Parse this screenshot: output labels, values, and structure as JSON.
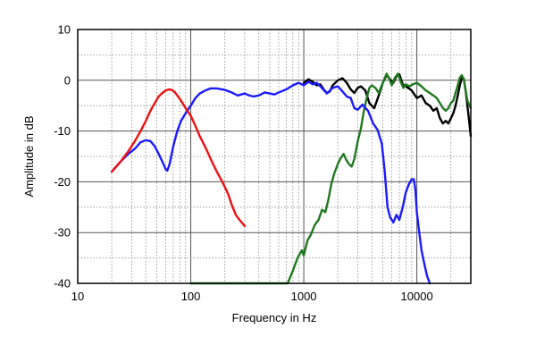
{
  "chart_data": {
    "type": "line",
    "title": "",
    "xlabel": "Frequency in Hz",
    "ylabel": "Amplitude in dB",
    "x_scale": "log",
    "xlim": [
      10,
      30000
    ],
    "ylim": [
      -40,
      10
    ],
    "x_ticks": [
      10,
      100,
      1000,
      10000
    ],
    "x_tick_labels": [
      "10",
      "100",
      "1000",
      "10000"
    ],
    "y_ticks": [
      -40,
      -30,
      -20,
      -10,
      0,
      10
    ],
    "y_tick_labels": [
      "-40",
      "-30",
      "-20",
      "-10",
      "0",
      "10"
    ],
    "grid": true,
    "legend": "none",
    "series": [
      {
        "color": "#000000",
        "points": [
          [
            1000,
            -0.5
          ],
          [
            1100,
            0.2
          ],
          [
            1200,
            -0.3
          ],
          [
            1300,
            -1.0
          ],
          [
            1400,
            -0.8
          ],
          [
            1500,
            -1.8
          ],
          [
            1600,
            -2.5
          ],
          [
            1700,
            -2.2
          ],
          [
            1800,
            -1.0
          ],
          [
            2000,
            0.0
          ],
          [
            2200,
            0.4
          ],
          [
            2400,
            -0.5
          ],
          [
            2600,
            -1.8
          ],
          [
            2800,
            -2.5
          ],
          [
            3000,
            -1.5
          ],
          [
            3200,
            -1.2
          ],
          [
            3500,
            -2.0
          ],
          [
            3800,
            -4.5
          ],
          [
            4200,
            -5.5
          ],
          [
            4600,
            -3.0
          ],
          [
            5000,
            -0.5
          ],
          [
            5400,
            1.0
          ],
          [
            5800,
            0.2
          ],
          [
            6200,
            -0.5
          ],
          [
            6600,
            0.8
          ],
          [
            7000,
            1.2
          ],
          [
            7500,
            -0.8
          ],
          [
            8000,
            -1.2
          ],
          [
            9000,
            -2.0
          ],
          [
            10000,
            -3.5
          ],
          [
            11000,
            -3.0
          ],
          [
            12000,
            -4.5
          ],
          [
            13000,
            -5.0
          ],
          [
            14000,
            -6.0
          ],
          [
            15000,
            -5.5
          ],
          [
            16000,
            -7.5
          ],
          [
            17000,
            -8.5
          ],
          [
            18000,
            -8.0
          ],
          [
            19000,
            -8.5
          ],
          [
            20000,
            -7.5
          ],
          [
            21000,
            -6.5
          ],
          [
            22000,
            -5.0
          ],
          [
            23000,
            -3.0
          ],
          [
            24000,
            -1.0
          ],
          [
            25000,
            0.5
          ],
          [
            26000,
            0.3
          ],
          [
            27000,
            -2.0
          ],
          [
            28000,
            -5.0
          ],
          [
            29000,
            -8.0
          ],
          [
            30000,
            -11.0
          ]
        ]
      },
      {
        "color": "#1f7a1f",
        "points": [
          [
            100,
            -40
          ],
          [
            500,
            -40
          ],
          [
            720,
            -40
          ],
          [
            800,
            -37.5
          ],
          [
            880,
            -35
          ],
          [
            960,
            -33.5
          ],
          [
            1000,
            -34.5
          ],
          [
            1080,
            -31.5
          ],
          [
            1150,
            -30.5
          ],
          [
            1250,
            -28.5
          ],
          [
            1350,
            -27.5
          ],
          [
            1450,
            -25.5
          ],
          [
            1550,
            -26.0
          ],
          [
            1650,
            -23.5
          ],
          [
            1750,
            -20.5
          ],
          [
            1850,
            -18.5
          ],
          [
            2000,
            -16.5
          ],
          [
            2100,
            -15.5
          ],
          [
            2250,
            -14.5
          ],
          [
            2350,
            -15.5
          ],
          [
            2500,
            -16.5
          ],
          [
            2650,
            -17.0
          ],
          [
            2800,
            -15.5
          ],
          [
            3000,
            -12.0
          ],
          [
            3200,
            -9.5
          ],
          [
            3400,
            -6.0
          ],
          [
            3600,
            -3.5
          ],
          [
            3800,
            -1.5
          ],
          [
            4000,
            -1.0
          ],
          [
            4300,
            -1.5
          ],
          [
            4600,
            -2.5
          ],
          [
            5000,
            -0.5
          ],
          [
            5400,
            1.3
          ],
          [
            5700,
            0.3
          ],
          [
            6000,
            -1.0
          ],
          [
            6400,
            0.5
          ],
          [
            6800,
            1.3
          ],
          [
            7200,
            -0.3
          ],
          [
            7600,
            -1.5
          ],
          [
            8000,
            -0.8
          ],
          [
            8600,
            -1.2
          ],
          [
            9200,
            -0.8
          ],
          [
            10000,
            -0.5
          ],
          [
            11000,
            -1.2
          ],
          [
            12000,
            -2.0
          ],
          [
            13000,
            -2.5
          ],
          [
            14000,
            -3.0
          ],
          [
            15000,
            -3.5
          ],
          [
            16000,
            -4.5
          ],
          [
            17000,
            -5.5
          ],
          [
            18000,
            -6.0
          ],
          [
            19000,
            -5.5
          ],
          [
            20000,
            -4.5
          ],
          [
            21000,
            -4.0
          ],
          [
            22000,
            -2.5
          ],
          [
            23000,
            -1.0
          ],
          [
            24000,
            0.5
          ],
          [
            25000,
            1.0
          ],
          [
            26000,
            0.2
          ],
          [
            27000,
            -2.0
          ],
          [
            28000,
            -4.0
          ],
          [
            30000,
            -5.5
          ]
        ]
      },
      {
        "color": "#1a1aff",
        "points": [
          [
            20,
            -18.0
          ],
          [
            24,
            -16.0
          ],
          [
            28,
            -14.5
          ],
          [
            32,
            -13.5
          ],
          [
            36,
            -12.2
          ],
          [
            40,
            -11.8
          ],
          [
            44,
            -12.0
          ],
          [
            48,
            -13.0
          ],
          [
            52,
            -14.5
          ],
          [
            56,
            -16.0
          ],
          [
            60,
            -17.5
          ],
          [
            62,
            -17.8
          ],
          [
            65,
            -16.5
          ],
          [
            70,
            -13.0
          ],
          [
            76,
            -10.0
          ],
          [
            82,
            -8.0
          ],
          [
            90,
            -6.5
          ],
          [
            100,
            -5.0
          ],
          [
            110,
            -3.5
          ],
          [
            120,
            -2.6
          ],
          [
            135,
            -2.0
          ],
          [
            150,
            -1.6
          ],
          [
            170,
            -1.6
          ],
          [
            200,
            -1.9
          ],
          [
            230,
            -2.4
          ],
          [
            260,
            -3.0
          ],
          [
            300,
            -2.6
          ],
          [
            330,
            -3.0
          ],
          [
            360,
            -3.2
          ],
          [
            400,
            -3.0
          ],
          [
            450,
            -2.4
          ],
          [
            500,
            -2.6
          ],
          [
            550,
            -2.8
          ],
          [
            600,
            -2.4
          ],
          [
            700,
            -1.8
          ],
          [
            800,
            -1.0
          ],
          [
            900,
            -0.5
          ],
          [
            1000,
            -1.0
          ],
          [
            1100,
            -0.3
          ],
          [
            1200,
            -0.8
          ],
          [
            1300,
            -0.5
          ],
          [
            1400,
            -1.2
          ],
          [
            1600,
            -2.6
          ],
          [
            1800,
            -1.5
          ],
          [
            2000,
            -1.2
          ],
          [
            2200,
            -2.2
          ],
          [
            2400,
            -3.2
          ],
          [
            2600,
            -3.5
          ],
          [
            2800,
            -5.5
          ],
          [
            3000,
            -5.8
          ],
          [
            3300,
            -4.8
          ],
          [
            3700,
            -6.0
          ],
          [
            4100,
            -8.5
          ],
          [
            4500,
            -9.8
          ],
          [
            4900,
            -12.5
          ],
          [
            5200,
            -18.0
          ],
          [
            5500,
            -25.0
          ],
          [
            5800,
            -27.0
          ],
          [
            6200,
            -28.0
          ],
          [
            6600,
            -26.5
          ],
          [
            7000,
            -27.5
          ],
          [
            7500,
            -25.0
          ],
          [
            8000,
            -22.0
          ],
          [
            8500,
            -20.5
          ],
          [
            9000,
            -19.5
          ],
          [
            9400,
            -19.5
          ],
          [
            9700,
            -21.5
          ],
          [
            10000,
            -26.0
          ],
          [
            10500,
            -30.0
          ],
          [
            11000,
            -33.5
          ],
          [
            11600,
            -36.0
          ],
          [
            12300,
            -38.5
          ],
          [
            13000,
            -40.0
          ]
        ]
      },
      {
        "color": "#ee1111",
        "points": [
          [
            20,
            -18.0
          ],
          [
            24,
            -16.0
          ],
          [
            28,
            -14.0
          ],
          [
            32,
            -12.0
          ],
          [
            36,
            -10.0
          ],
          [
            40,
            -8.0
          ],
          [
            44,
            -6.0
          ],
          [
            48,
            -4.5
          ],
          [
            52,
            -3.2
          ],
          [
            56,
            -2.5
          ],
          [
            60,
            -2.0
          ],
          [
            64,
            -1.8
          ],
          [
            68,
            -1.9
          ],
          [
            72,
            -2.3
          ],
          [
            76,
            -3.0
          ],
          [
            82,
            -4.0
          ],
          [
            90,
            -5.5
          ],
          [
            100,
            -7.0
          ],
          [
            110,
            -9.0
          ],
          [
            120,
            -11.0
          ],
          [
            130,
            -12.5
          ],
          [
            140,
            -14.0
          ],
          [
            150,
            -15.5
          ],
          [
            160,
            -16.8
          ],
          [
            170,
            -18.0
          ],
          [
            185,
            -19.5
          ],
          [
            200,
            -21.0
          ],
          [
            215,
            -22.5
          ],
          [
            230,
            -24.5
          ],
          [
            250,
            -26.5
          ],
          [
            270,
            -27.5
          ],
          [
            300,
            -28.7
          ]
        ]
      }
    ]
  }
}
